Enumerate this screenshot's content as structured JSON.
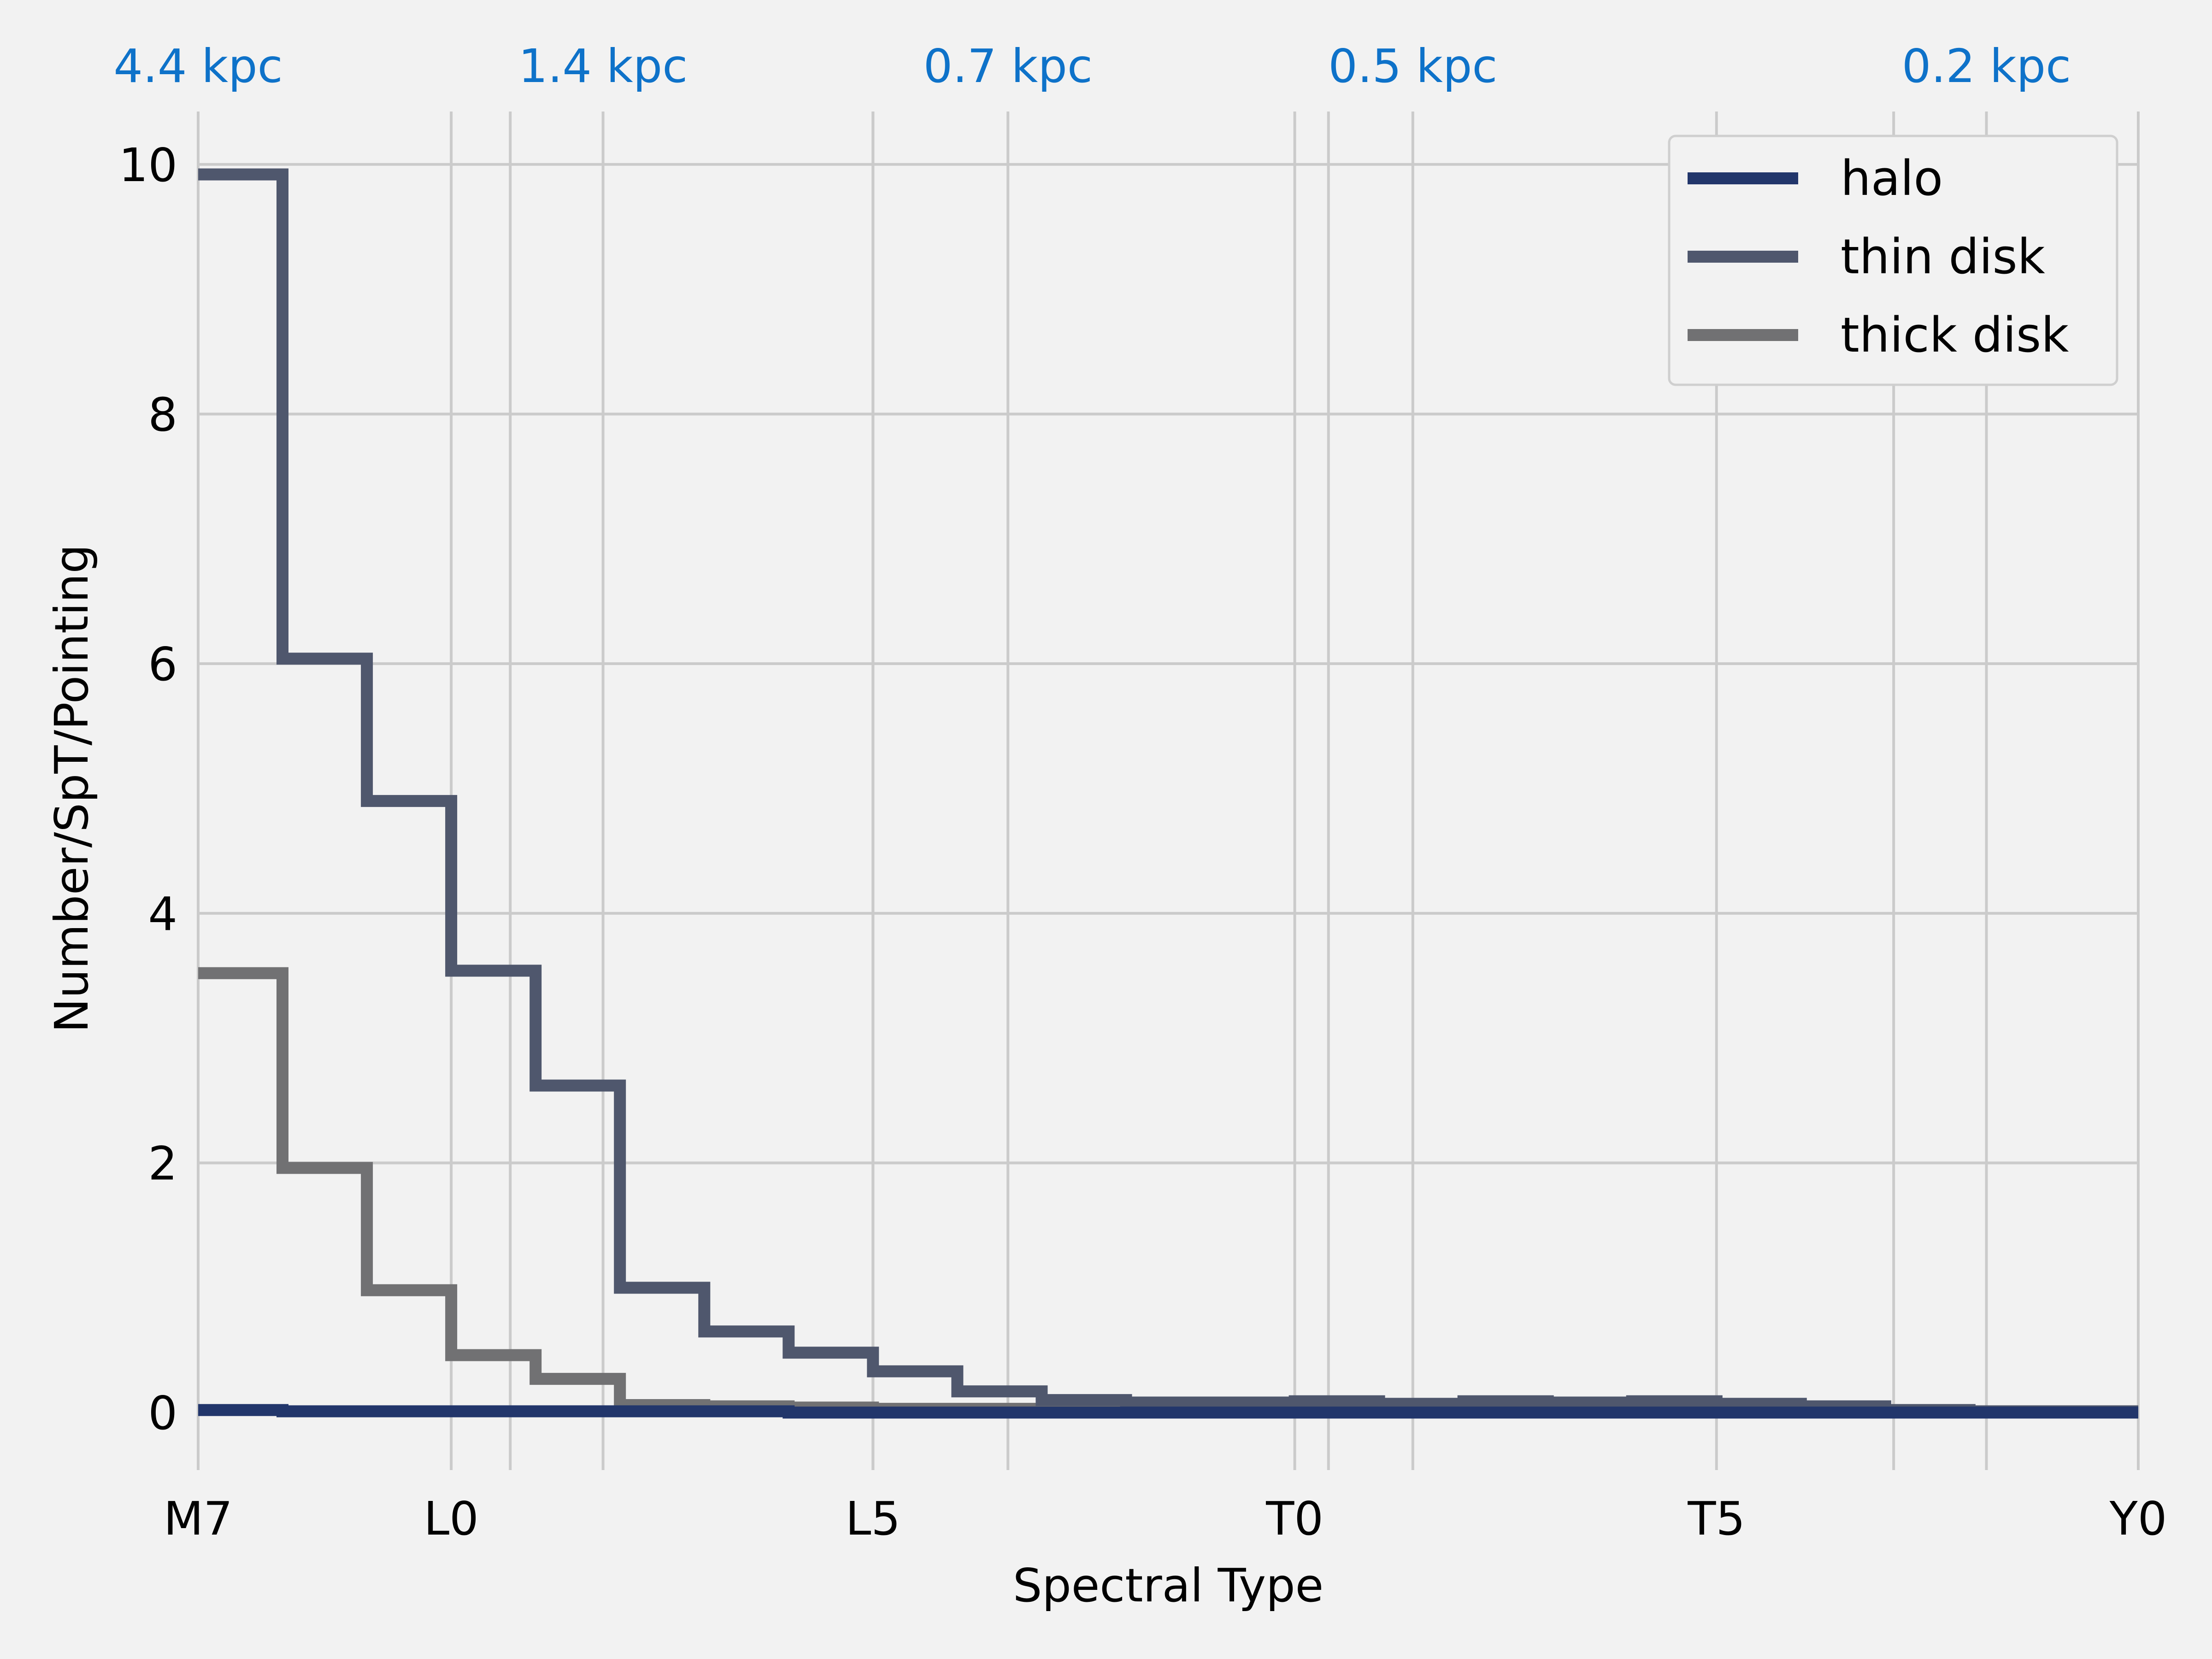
{
  "chart_data": {
    "type": "line",
    "drawstyle": "steps-post",
    "xlabel": "Spectral Type",
    "ylabel": "Number/SpT/Pointing",
    "xlim": [
      17,
      40
    ],
    "ylim": [
      -0.35,
      10.35
    ],
    "grid": true,
    "legend_position": "top-right",
    "x_ticks": [
      {
        "value": 17,
        "label": "M7"
      },
      {
        "value": 20,
        "label": "L0"
      },
      {
        "value": 25,
        "label": "L5"
      },
      {
        "value": 30,
        "label": "T0"
      },
      {
        "value": 35,
        "label": "T5"
      },
      {
        "value": 40,
        "label": "Y0"
      }
    ],
    "y_ticks": [
      0,
      2,
      4,
      6,
      8,
      10
    ],
    "top_axis": {
      "color": "#0e72c9",
      "ticks": [
        {
          "value": 17,
          "label": "4.4 kpc"
        },
        {
          "value": 20.7,
          "label": ""
        },
        {
          "value": 21.8,
          "label": "1.4 kpc"
        },
        {
          "value": 25,
          "label": ""
        },
        {
          "value": 26.6,
          "label": "0.7 kpc"
        },
        {
          "value": 30.4,
          "label": ""
        },
        {
          "value": 31.4,
          "label": "0.5 kpc"
        },
        {
          "value": 37.1,
          "label": ""
        },
        {
          "value": 38.2,
          "label": "0.2 kpc"
        }
      ]
    },
    "x": [
      17,
      18,
      19,
      20,
      21,
      22,
      23,
      24,
      25,
      26,
      27,
      28,
      29,
      30,
      31,
      32,
      33,
      34,
      35,
      36,
      37,
      38,
      39
    ],
    "series": [
      {
        "name": "halo",
        "color": "#22366b",
        "values": [
          0.02,
          0.01,
          0.01,
          0.01,
          0.01,
          0.01,
          0.01,
          0.0,
          0.0,
          0.0,
          0.0,
          0.0,
          0.0,
          0.0,
          0.0,
          0.0,
          0.0,
          0.0,
          0.0,
          0.0,
          0.0,
          0.0,
          0.0
        ]
      },
      {
        "name": "thin disk",
        "color": "#4f576d",
        "values": [
          9.92,
          6.04,
          4.9,
          3.54,
          2.62,
          1.0,
          0.65,
          0.48,
          0.33,
          0.17,
          0.1,
          0.08,
          0.08,
          0.09,
          0.07,
          0.09,
          0.08,
          0.09,
          0.07,
          0.05,
          0.02,
          0.01,
          0.01
        ]
      },
      {
        "name": "thick disk",
        "color": "#717173",
        "values": [
          3.52,
          1.96,
          0.98,
          0.46,
          0.27,
          0.06,
          0.05,
          0.04,
          0.03,
          0.03,
          0.02,
          0.02,
          0.02,
          0.02,
          0.02,
          0.02,
          0.02,
          0.02,
          0.01,
          0.01,
          0.01,
          0.01,
          0.01
        ]
      }
    ]
  }
}
